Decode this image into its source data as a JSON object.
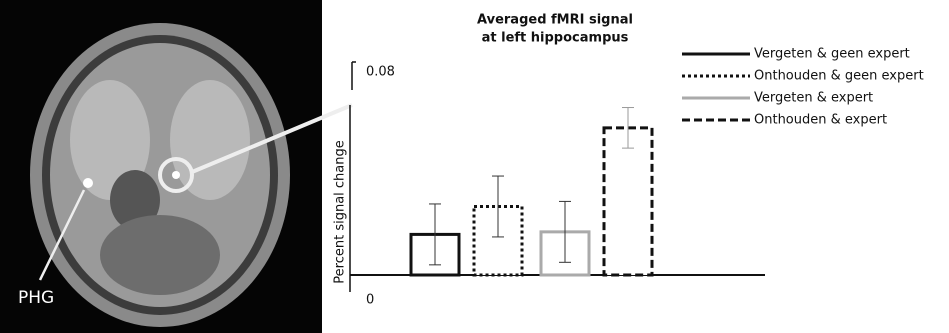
{
  "chart_data": {
    "type": "bar",
    "title": [
      "Averaged fMRI signal",
      "at left hippocampus"
    ],
    "y_label": "Percent signal change",
    "image_label": "PHG",
    "ylim": [
      0,
      0.08
    ],
    "yticks": [
      0,
      0.08
    ],
    "series": [
      {
        "name": "Vergeten & geen expert",
        "color": "#111111",
        "style": "solid",
        "values": [
          0.016
        ],
        "errors": [
          0.012
        ]
      },
      {
        "name": "Onthouden & geen expert",
        "color": "#111111",
        "style": "dotted",
        "values": [
          0.027
        ],
        "errors": [
          0.012
        ]
      },
      {
        "name": "Vergeten & expert",
        "color": "#aaaaaa",
        "style": "solid",
        "values": [
          0.017
        ],
        "errors": [
          0.012
        ]
      },
      {
        "name": "Onthouden & expert",
        "color": "#111111",
        "style": "dashed",
        "values": [
          0.058
        ],
        "errors": [
          0.008
        ]
      }
    ]
  }
}
